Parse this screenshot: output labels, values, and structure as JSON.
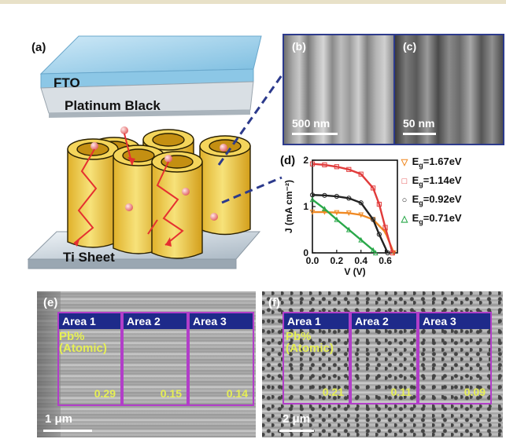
{
  "panel_a": {
    "label": "(a)",
    "fto_label": "FTO",
    "platinum_label": "Platinum Black",
    "ti_label": "Ti Sheet"
  },
  "panel_b": {
    "label": "(b)",
    "scale": "500 nm"
  },
  "panel_c": {
    "label": "(c)",
    "scale": "50 nm"
  },
  "panel_d": {
    "label": "(d)",
    "legend": [
      {
        "symbol": "▽",
        "prefix": "E",
        "sub": "g",
        "suffix": "=1.67eV",
        "color": "#f08a24"
      },
      {
        "symbol": "□",
        "prefix": "E",
        "sub": "g",
        "suffix": "=1.14eV",
        "color": "#e13b3b"
      },
      {
        "symbol": "○",
        "prefix": "E",
        "sub": "g",
        "suffix": "=0.92eV",
        "color": "#222222"
      },
      {
        "symbol": "△",
        "prefix": "E",
        "sub": "g",
        "suffix": "=0.71eV",
        "color": "#2aa84a"
      }
    ]
  },
  "chart_data": {
    "type": "line",
    "xlabel": "V (V)",
    "ylabel": "J (mA cm⁻²)",
    "xlim": [
      0.0,
      0.7
    ],
    "ylim": [
      0,
      2
    ],
    "x_ticks": [
      "0.0",
      "0.2",
      "0.4",
      "0.6"
    ],
    "y_ticks": [
      "0",
      "1",
      "2"
    ],
    "series": [
      {
        "name": "Eg=1.67eV",
        "color": "#f08a24",
        "marker": "triangle-down",
        "points": [
          [
            0.0,
            0.88
          ],
          [
            0.1,
            0.88
          ],
          [
            0.2,
            0.87
          ],
          [
            0.3,
            0.86
          ],
          [
            0.4,
            0.82
          ],
          [
            0.5,
            0.72
          ],
          [
            0.6,
            0.45
          ],
          [
            0.67,
            0.0
          ]
        ]
      },
      {
        "name": "Eg=1.14eV",
        "color": "#e13b3b",
        "marker": "square",
        "points": [
          [
            0.0,
            1.92
          ],
          [
            0.1,
            1.9
          ],
          [
            0.2,
            1.86
          ],
          [
            0.3,
            1.8
          ],
          [
            0.4,
            1.7
          ],
          [
            0.5,
            1.4
          ],
          [
            0.55,
            1.05
          ],
          [
            0.6,
            0.55
          ],
          [
            0.66,
            0.0
          ]
        ]
      },
      {
        "name": "Eg=0.92eV",
        "color": "#222222",
        "marker": "circle",
        "points": [
          [
            0.0,
            1.25
          ],
          [
            0.1,
            1.24
          ],
          [
            0.2,
            1.22
          ],
          [
            0.3,
            1.18
          ],
          [
            0.4,
            1.08
          ],
          [
            0.5,
            0.72
          ],
          [
            0.55,
            0.4
          ],
          [
            0.62,
            0.0
          ]
        ]
      },
      {
        "name": "Eg=0.71eV",
        "color": "#2aa84a",
        "marker": "triangle-up",
        "points": [
          [
            0.0,
            1.15
          ],
          [
            0.1,
            0.95
          ],
          [
            0.2,
            0.72
          ],
          [
            0.3,
            0.5
          ],
          [
            0.4,
            0.28
          ],
          [
            0.5,
            0.06
          ],
          [
            0.52,
            0.0
          ]
        ]
      }
    ]
  },
  "panel_e": {
    "label": "(e)",
    "pb_label_line1": "Pb%",
    "pb_label_line2": "(Atomic)",
    "scale": "1 μm",
    "areas": [
      {
        "name": "Area 1",
        "value": "0.29"
      },
      {
        "name": "Area 2",
        "value": "0.15"
      },
      {
        "name": "Area 3",
        "value": "0.14"
      }
    ]
  },
  "panel_f": {
    "label": "(f)",
    "pb_label_line1": "Pb%",
    "pb_label_line2": "(Atomic)",
    "scale": "2 μm",
    "areas": [
      {
        "name": "Area 1",
        "value": "0.21"
      },
      {
        "name": "Area 2",
        "value": "0.11"
      },
      {
        "name": "Area 3",
        "value": "0.09"
      }
    ]
  }
}
